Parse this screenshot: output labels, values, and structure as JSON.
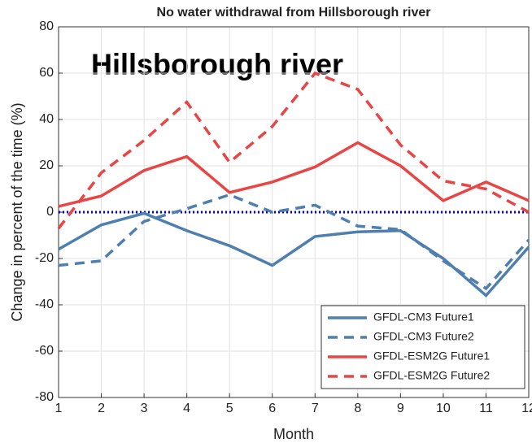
{
  "chart_data": {
    "type": "line",
    "title": "No water withdrawal from Hillsborough river",
    "annotation": "Hillsborough river",
    "x_label": "Month",
    "y_label": "Change in percent of the time (%)",
    "x": [
      1,
      2,
      3,
      4,
      5,
      6,
      7,
      8,
      9,
      10,
      11,
      12
    ],
    "xlim": [
      1,
      12
    ],
    "xticks": [
      1,
      2,
      3,
      4,
      5,
      6,
      7,
      8,
      9,
      10,
      11,
      12
    ],
    "ylim": [
      -80,
      80
    ],
    "yticks": [
      -80,
      -60,
      -40,
      -20,
      0,
      20,
      40,
      60,
      80
    ],
    "grid": true,
    "legend_location": "lower right",
    "reference_line": {
      "value": 0,
      "color": "#0000cc",
      "style": "dotted"
    },
    "series": [
      {
        "name": "GFDL-CM3 Future1",
        "color": "#4f7fae",
        "style": "solid",
        "values": [
          -16,
          -5.5,
          -0.5,
          -8,
          -14.5,
          -23,
          -10.5,
          -8.5,
          -8,
          -20,
          -36,
          -15
        ]
      },
      {
        "name": "GFDL-CM3 Future2",
        "color": "#4f7fae",
        "style": "dashed",
        "values": [
          -23,
          -21,
          -4,
          1.5,
          7.5,
          0,
          3,
          -6,
          -7.5,
          -21,
          -33,
          -12
        ]
      },
      {
        "name": "GFDL-ESM2G Future1",
        "color": "#e84545",
        "style": "solid",
        "values": [
          2.5,
          7,
          18,
          24,
          8.5,
          13,
          19.5,
          30,
          20,
          5,
          13,
          5
        ]
      },
      {
        "name": "GFDL-ESM2G Future2",
        "color": "#e84545",
        "style": "dashed",
        "values": [
          -7,
          17,
          31,
          47.5,
          21.5,
          37,
          60,
          53,
          29,
          13.5,
          10,
          0
        ]
      }
    ]
  }
}
